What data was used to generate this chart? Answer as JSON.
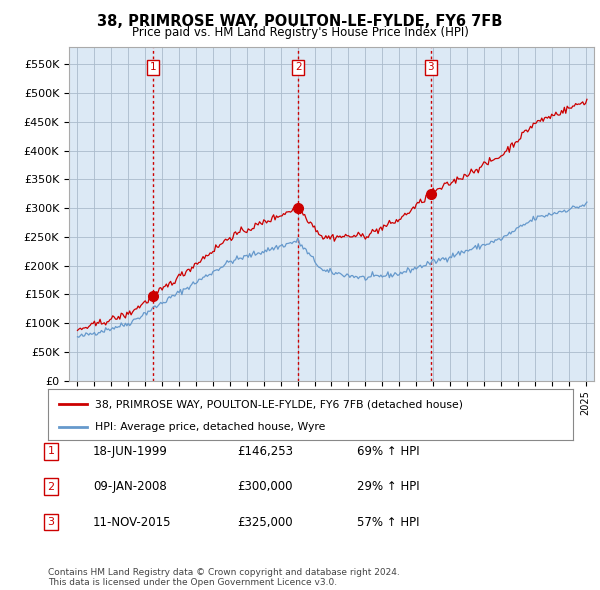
{
  "title": "38, PRIMROSE WAY, POULTON-LE-FYLDE, FY6 7FB",
  "subtitle": "Price paid vs. HM Land Registry's House Price Index (HPI)",
  "ylim": [
    0,
    580000
  ],
  "yticks": [
    0,
    50000,
    100000,
    150000,
    200000,
    250000,
    300000,
    350000,
    400000,
    450000,
    500000,
    550000
  ],
  "ytick_labels": [
    "£0",
    "£50K",
    "£100K",
    "£150K",
    "£200K",
    "£250K",
    "£300K",
    "£350K",
    "£400K",
    "£450K",
    "£500K",
    "£550K"
  ],
  "sale_dates_num": [
    1999.46,
    2008.03,
    2015.86
  ],
  "sale_prices": [
    146253,
    300000,
    325000
  ],
  "sale_labels": [
    "1",
    "2",
    "3"
  ],
  "vline_color": "#cc0000",
  "sale_marker_color": "#cc0000",
  "red_line_color": "#cc0000",
  "blue_line_color": "#6699cc",
  "chart_bg_color": "#dce9f5",
  "legend_red_label": "38, PRIMROSE WAY, POULTON-LE-FYLDE, FY6 7FB (detached house)",
  "legend_blue_label": "HPI: Average price, detached house, Wyre",
  "transaction_rows": [
    {
      "num": "1",
      "date": "18-JUN-1999",
      "price": "£146,253",
      "hpi": "69% ↑ HPI"
    },
    {
      "num": "2",
      "date": "09-JAN-2008",
      "price": "£300,000",
      "hpi": "29% ↑ HPI"
    },
    {
      "num": "3",
      "date": "11-NOV-2015",
      "price": "£325,000",
      "hpi": "57% ↑ HPI"
    }
  ],
  "footer": "Contains HM Land Registry data © Crown copyright and database right 2024.\nThis data is licensed under the Open Government Licence v3.0.",
  "grid_color": "#aabbcc"
}
